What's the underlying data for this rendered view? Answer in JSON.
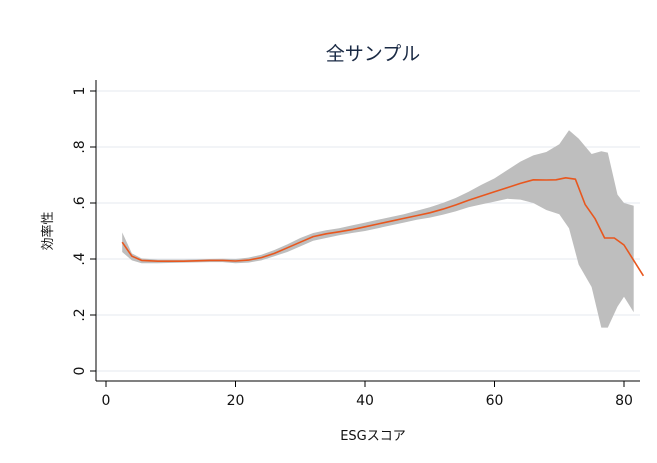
{
  "chart_data": {
    "type": "line",
    "title": "全サンプル",
    "xlabel": "ESGスコア",
    "ylabel": "効率性",
    "xlim": [
      0,
      83
    ],
    "ylim": [
      0,
      1
    ],
    "x_ticks": [
      "0",
      "20",
      "40",
      "60",
      "80"
    ],
    "y_ticks": [
      "0",
      ".2",
      ".4",
      ".6",
      ".8",
      "1"
    ],
    "grid": true,
    "legend": "none",
    "colors": {
      "line": "#e8571e",
      "band": "#bebebe",
      "grid": "#e4e8ef",
      "axis": "#000000",
      "title": "#1a2a44"
    },
    "series": [
      {
        "x": [
          2.5,
          4,
          5.5,
          8,
          12,
          16,
          18,
          20,
          22,
          24,
          26,
          28,
          30,
          32,
          34,
          36,
          38,
          40,
          42,
          44,
          46,
          48,
          50,
          52,
          54,
          56,
          58,
          60,
          62,
          64,
          66,
          68,
          69.5,
          71,
          72.5,
          74,
          75.5,
          77,
          78.5,
          80,
          81.5,
          83
        ],
        "y": [
          0.46,
          0.41,
          0.395,
          0.392,
          0.392,
          0.395,
          0.395,
          0.393,
          0.396,
          0.405,
          0.42,
          0.44,
          0.46,
          0.48,
          0.49,
          0.497,
          0.505,
          0.515,
          0.525,
          0.535,
          0.545,
          0.555,
          0.565,
          0.578,
          0.593,
          0.61,
          0.625,
          0.64,
          0.655,
          0.67,
          0.683,
          0.682,
          0.683,
          0.69,
          0.685,
          0.595,
          0.545,
          0.475,
          0.475,
          0.45,
          0.395,
          0.34
        ]
      }
    ],
    "band": {
      "x": [
        2.5,
        4,
        5.5,
        8,
        12,
        16,
        18,
        20,
        22,
        24,
        26,
        28,
        30,
        32,
        34,
        36,
        38,
        40,
        42,
        44,
        46,
        48,
        50,
        52,
        54,
        56,
        58,
        60,
        62,
        64,
        66,
        68,
        70,
        71.5,
        73,
        75,
        76.5,
        77.5,
        79,
        80,
        81.5
      ],
      "upper": [
        0.495,
        0.42,
        0.402,
        0.398,
        0.398,
        0.4,
        0.401,
        0.4,
        0.405,
        0.415,
        0.432,
        0.452,
        0.475,
        0.493,
        0.503,
        0.51,
        0.52,
        0.53,
        0.54,
        0.55,
        0.56,
        0.572,
        0.585,
        0.6,
        0.618,
        0.64,
        0.665,
        0.688,
        0.718,
        0.748,
        0.77,
        0.782,
        0.81,
        0.86,
        0.83,
        0.775,
        0.785,
        0.78,
        0.63,
        0.6,
        0.59
      ],
      "lower": [
        0.425,
        0.395,
        0.385,
        0.385,
        0.387,
        0.389,
        0.389,
        0.385,
        0.387,
        0.395,
        0.41,
        0.425,
        0.445,
        0.465,
        0.475,
        0.485,
        0.493,
        0.5,
        0.51,
        0.52,
        0.53,
        0.54,
        0.548,
        0.558,
        0.57,
        0.585,
        0.595,
        0.605,
        0.615,
        0.612,
        0.6,
        0.575,
        0.56,
        0.51,
        0.38,
        0.3,
        0.155,
        0.155,
        0.23,
        0.265,
        0.21
      ]
    }
  }
}
